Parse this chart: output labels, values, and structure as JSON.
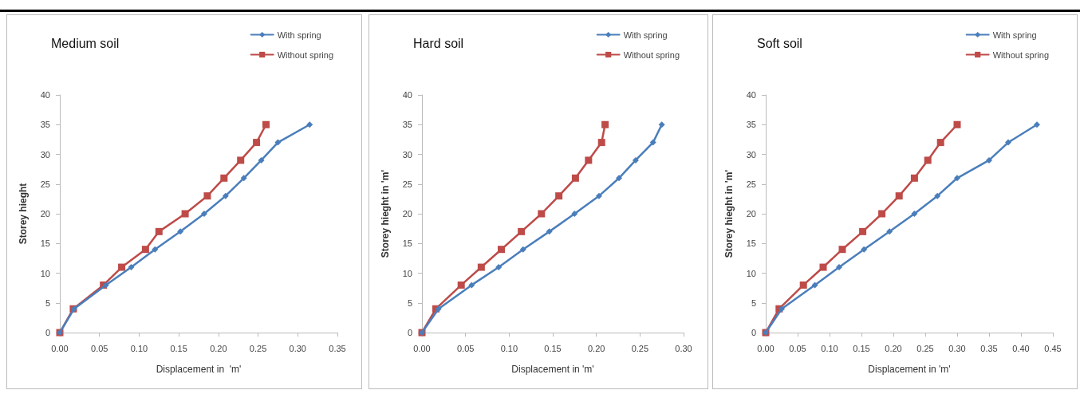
{
  "chart_data": [
    {
      "type": "line",
      "title": "Medium soil",
      "xlabel": "Displacement in  'm'",
      "ylabel": "Storey hieght",
      "xlim": [
        0,
        0.35
      ],
      "xticks": [
        {
          "value": 0,
          "label": "0.00"
        },
        {
          "value": 0.05,
          "label": "0.05"
        },
        {
          "value": 0.1,
          "label": "0.10"
        },
        {
          "value": 0.15,
          "label": "0.15"
        },
        {
          "value": 0.2,
          "label": "0.20"
        },
        {
          "value": 0.25,
          "label": "0.25"
        },
        {
          "value": 0.3,
          "label": "0.30"
        },
        {
          "value": 0.35,
          "label": "0.35"
        }
      ],
      "ylim": [
        0,
        40
      ],
      "yticks": [
        0,
        5,
        10,
        15,
        20,
        25,
        30,
        35,
        40
      ],
      "grid": false,
      "legend": "top right",
      "line_style": "solid",
      "series": [
        {
          "name": "With spring",
          "color": "#4a7ebb",
          "marker": "diamond",
          "x": [
            0,
            0.018,
            0.058,
            0.09,
            0.12,
            0.152,
            0.182,
            0.209,
            0.232,
            0.254,
            0.275,
            0.315
          ],
          "values": [
            0,
            4,
            8,
            11,
            14,
            17,
            20,
            23,
            26,
            29,
            32,
            35
          ]
        },
        {
          "name": "Without spring",
          "color": "#be4b48",
          "marker": "square",
          "x": [
            0,
            0.017,
            0.055,
            0.078,
            0.108,
            0.125,
            0.158,
            0.186,
            0.207,
            0.228,
            0.248,
            0.26
          ],
          "values": [
            0,
            4,
            8,
            11,
            14,
            17,
            20,
            23,
            26,
            29,
            32,
            35
          ]
        }
      ]
    },
    {
      "type": "line",
      "title": "Hard soil",
      "xlabel": "Displacement in 'm'",
      "ylabel": "Storey hieght in 'm'",
      "xlim": [
        0,
        0.3
      ],
      "xticks": [
        {
          "value": 0,
          "label": "0.00"
        },
        {
          "value": 0.05,
          "label": "0.05"
        },
        {
          "value": 0.1,
          "label": "0.10"
        },
        {
          "value": 0.15,
          "label": "0.15"
        },
        {
          "value": 0.2,
          "label": "0.20"
        },
        {
          "value": 0.25,
          "label": "0.25"
        },
        {
          "value": 0.3,
          "label": "0.30"
        }
      ],
      "ylim": [
        0,
        40
      ],
      "yticks": [
        0,
        5,
        10,
        15,
        20,
        25,
        30,
        35,
        40
      ],
      "grid": false,
      "legend": "top right",
      "line_style": "solid",
      "series": [
        {
          "name": "With spring",
          "color": "#4a7ebb",
          "marker": "diamond",
          "x": [
            0,
            0.019,
            0.057,
            0.088,
            0.116,
            0.146,
            0.175,
            0.203,
            0.226,
            0.245,
            0.265,
            0.275
          ],
          "values": [
            0,
            4,
            8,
            11,
            14,
            17,
            20,
            23,
            26,
            29,
            32,
            35
          ]
        },
        {
          "name": "Without spring",
          "color": "#be4b48",
          "marker": "square",
          "x": [
            0,
            0.016,
            0.045,
            0.068,
            0.091,
            0.114,
            0.137,
            0.157,
            0.176,
            0.191,
            0.206,
            0.21
          ],
          "values": [
            0,
            4,
            8,
            11,
            14,
            17,
            20,
            23,
            26,
            29,
            32,
            35
          ]
        }
      ]
    },
    {
      "type": "line",
      "title": "Soft soil",
      "xlabel": "Displacement in 'm'",
      "ylabel": "Storey hieght in 'm'",
      "xlim": [
        0,
        0.45
      ],
      "xticks": [
        {
          "value": 0,
          "label": "0.00"
        },
        {
          "value": 0.05,
          "label": "0.05"
        },
        {
          "value": 0.1,
          "label": "0.10"
        },
        {
          "value": 0.15,
          "label": "0.15"
        },
        {
          "value": 0.2,
          "label": "0.20"
        },
        {
          "value": 0.25,
          "label": "0.25"
        },
        {
          "value": 0.3,
          "label": "0.30"
        },
        {
          "value": 0.35,
          "label": "0.35"
        },
        {
          "value": 0.4,
          "label": "0.40"
        },
        {
          "value": 0.45,
          "label": "0.45"
        }
      ],
      "ylim": [
        0,
        40
      ],
      "yticks": [
        0,
        5,
        10,
        15,
        20,
        25,
        30,
        35,
        40
      ],
      "grid": false,
      "legend": "top right",
      "line_style": "solid",
      "series": [
        {
          "name": "With spring",
          "color": "#4a7ebb",
          "marker": "diamond",
          "x": [
            0,
            0.025,
            0.077,
            0.115,
            0.154,
            0.194,
            0.233,
            0.269,
            0.3,
            0.35,
            0.38,
            0.425
          ],
          "values": [
            0,
            4,
            8,
            11,
            14,
            17,
            20,
            23,
            26,
            29,
            32,
            35
          ]
        },
        {
          "name": "Without spring",
          "color": "#be4b48",
          "marker": "square",
          "x": [
            0,
            0.021,
            0.059,
            0.09,
            0.12,
            0.152,
            0.182,
            0.209,
            0.233,
            0.254,
            0.274,
            0.3
          ],
          "values": [
            0,
            4,
            8,
            11,
            14,
            17,
            20,
            23,
            26,
            29,
            32,
            35
          ]
        }
      ]
    }
  ]
}
